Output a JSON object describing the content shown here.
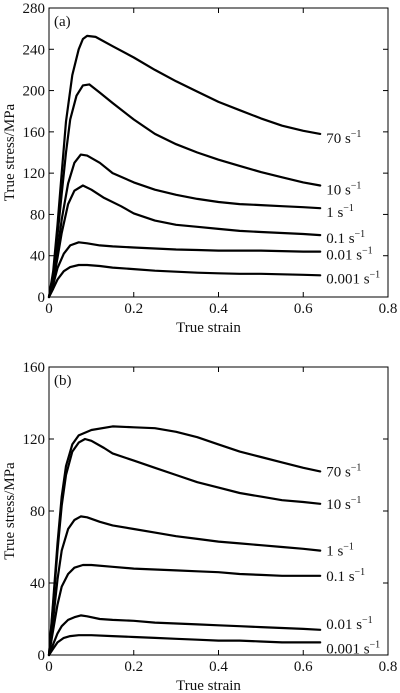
{
  "chart_data": [
    {
      "type": "line",
      "panel_label": "(a)",
      "xlabel": "True strain",
      "ylabel": "True stress/MPa",
      "xlim": [
        0,
        0.8
      ],
      "ylim": [
        0,
        280
      ],
      "xticks": [
        0,
        0.2,
        0.4,
        0.6,
        0.8
      ],
      "xtick_labels": [
        "0",
        "0.2",
        "0.4",
        "0.6",
        "0.8"
      ],
      "yticks": [
        0,
        40,
        80,
        120,
        160,
        200,
        240,
        280
      ],
      "ytick_labels": [
        "0",
        "40",
        "80",
        "120",
        "160",
        "200",
        "240",
        "280"
      ],
      "grid": false,
      "legend": "inline labels at right end of curves",
      "series": [
        {
          "name": "70 s",
          "sup": "−1",
          "points": [
            [
              0,
              0
            ],
            [
              0.01,
              25
            ],
            [
              0.02,
              70
            ],
            [
              0.03,
              120
            ],
            [
              0.04,
              170
            ],
            [
              0.055,
              215
            ],
            [
              0.07,
              240
            ],
            [
              0.08,
              250
            ],
            [
              0.09,
              253
            ],
            [
              0.11,
              252
            ],
            [
              0.15,
              243
            ],
            [
              0.2,
              232
            ],
            [
              0.25,
              220
            ],
            [
              0.3,
              209
            ],
            [
              0.35,
              199
            ],
            [
              0.4,
              189
            ],
            [
              0.45,
              181
            ],
            [
              0.5,
              173
            ],
            [
              0.55,
              166
            ],
            [
              0.6,
              161
            ],
            [
              0.64,
              158
            ]
          ]
        },
        {
          "name": "10 s",
          "sup": "−1",
          "points": [
            [
              0,
              0
            ],
            [
              0.01,
              22
            ],
            [
              0.02,
              60
            ],
            [
              0.03,
              100
            ],
            [
              0.04,
              140
            ],
            [
              0.05,
              172
            ],
            [
              0.065,
              195
            ],
            [
              0.08,
              205
            ],
            [
              0.095,
              206
            ],
            [
              0.12,
              198
            ],
            [
              0.15,
              188
            ],
            [
              0.2,
              172
            ],
            [
              0.25,
              158
            ],
            [
              0.3,
              148
            ],
            [
              0.35,
              140
            ],
            [
              0.4,
              133
            ],
            [
              0.45,
              127
            ],
            [
              0.5,
              121
            ],
            [
              0.55,
              116
            ],
            [
              0.6,
              111
            ],
            [
              0.64,
              108
            ]
          ]
        },
        {
          "name": "1 s",
          "sup": "−1",
          "points": [
            [
              0,
              0
            ],
            [
              0.01,
              18
            ],
            [
              0.02,
              45
            ],
            [
              0.03,
              75
            ],
            [
              0.045,
              110
            ],
            [
              0.06,
              130
            ],
            [
              0.075,
              138
            ],
            [
              0.09,
              137
            ],
            [
              0.12,
              130
            ],
            [
              0.15,
              120
            ],
            [
              0.2,
              111
            ],
            [
              0.25,
              104
            ],
            [
              0.3,
              99
            ],
            [
              0.35,
              95
            ],
            [
              0.4,
              92
            ],
            [
              0.45,
              90
            ],
            [
              0.5,
              89
            ],
            [
              0.55,
              88
            ],
            [
              0.6,
              87
            ],
            [
              0.64,
              86
            ]
          ]
        },
        {
          "name": "0.1 s",
          "sup": "−1",
          "points": [
            [
              0,
              0
            ],
            [
              0.01,
              15
            ],
            [
              0.02,
              38
            ],
            [
              0.03,
              62
            ],
            [
              0.045,
              90
            ],
            [
              0.06,
              103
            ],
            [
              0.08,
              108
            ],
            [
              0.1,
              104
            ],
            [
              0.13,
              96
            ],
            [
              0.17,
              88
            ],
            [
              0.2,
              81
            ],
            [
              0.25,
              74
            ],
            [
              0.3,
              70
            ],
            [
              0.35,
              68
            ],
            [
              0.4,
              66
            ],
            [
              0.45,
              64
            ],
            [
              0.5,
              63
            ],
            [
              0.55,
              62
            ],
            [
              0.6,
              61
            ],
            [
              0.64,
              60
            ]
          ]
        },
        {
          "name": "0.01 s",
          "sup": "−1",
          "points": [
            [
              0,
              0
            ],
            [
              0.01,
              12
            ],
            [
              0.02,
              28
            ],
            [
              0.035,
              42
            ],
            [
              0.05,
              50
            ],
            [
              0.07,
              53
            ],
            [
              0.09,
              52
            ],
            [
              0.12,
              50
            ],
            [
              0.15,
              49
            ],
            [
              0.2,
              48
            ],
            [
              0.25,
              47
            ],
            [
              0.3,
              46
            ],
            [
              0.35,
              45.5
            ],
            [
              0.4,
              45
            ],
            [
              0.45,
              45
            ],
            [
              0.5,
              45
            ],
            [
              0.55,
              44.5
            ],
            [
              0.6,
              44
            ],
            [
              0.64,
              44
            ]
          ]
        },
        {
          "name": "0.001 s",
          "sup": "−1",
          "points": [
            [
              0,
              0
            ],
            [
              0.01,
              8
            ],
            [
              0.02,
              17
            ],
            [
              0.035,
              25
            ],
            [
              0.05,
              29
            ],
            [
              0.07,
              31
            ],
            [
              0.09,
              31
            ],
            [
              0.12,
              30
            ],
            [
              0.15,
              28.5
            ],
            [
              0.2,
              27
            ],
            [
              0.25,
              25.5
            ],
            [
              0.3,
              24.5
            ],
            [
              0.35,
              23.5
            ],
            [
              0.4,
              23
            ],
            [
              0.45,
              22.5
            ],
            [
              0.5,
              22.5
            ],
            [
              0.55,
              22
            ],
            [
              0.6,
              21.5
            ],
            [
              0.64,
              21
            ]
          ]
        }
      ]
    },
    {
      "type": "line",
      "panel_label": "(b)",
      "xlabel": "True strain",
      "ylabel": "True stress/MPa",
      "xlim": [
        0,
        0.8
      ],
      "ylim": [
        0,
        160
      ],
      "xticks": [
        0,
        0.2,
        0.4,
        0.6,
        0.8
      ],
      "xtick_labels": [
        "0",
        "0.2",
        "0.4",
        "0.6",
        "0.8"
      ],
      "yticks": [
        0,
        40,
        80,
        120,
        160
      ],
      "ytick_labels": [
        "0",
        "40",
        "80",
        "120",
        "160"
      ],
      "grid": false,
      "legend": "inline labels at right end of curves",
      "series": [
        {
          "name": "70 s",
          "sup": "−1",
          "points": [
            [
              0,
              0
            ],
            [
              0.01,
              30
            ],
            [
              0.02,
              62
            ],
            [
              0.03,
              88
            ],
            [
              0.04,
              105
            ],
            [
              0.055,
              117
            ],
            [
              0.07,
              122
            ],
            [
              0.1,
              125
            ],
            [
              0.15,
              127
            ],
            [
              0.2,
              126.5
            ],
            [
              0.25,
              126
            ],
            [
              0.3,
              124
            ],
            [
              0.35,
              121
            ],
            [
              0.4,
              117
            ],
            [
              0.45,
              113
            ],
            [
              0.5,
              110
            ],
            [
              0.55,
              107
            ],
            [
              0.6,
              104
            ],
            [
              0.64,
              102
            ]
          ]
        },
        {
          "name": "10 s",
          "sup": "−1",
          "points": [
            [
              0,
              0
            ],
            [
              0.01,
              28
            ],
            [
              0.02,
              58
            ],
            [
              0.03,
              83
            ],
            [
              0.04,
              100
            ],
            [
              0.055,
              113
            ],
            [
              0.07,
              118
            ],
            [
              0.085,
              120
            ],
            [
              0.1,
              119
            ],
            [
              0.13,
              115
            ],
            [
              0.15,
              112
            ],
            [
              0.2,
              108
            ],
            [
              0.25,
              104
            ],
            [
              0.3,
              100
            ],
            [
              0.35,
              96
            ],
            [
              0.4,
              93
            ],
            [
              0.45,
              90
            ],
            [
              0.5,
              88
            ],
            [
              0.55,
              86
            ],
            [
              0.6,
              85
            ],
            [
              0.64,
              84
            ]
          ]
        },
        {
          "name": "1 s",
          "sup": "−1",
          "points": [
            [
              0,
              0
            ],
            [
              0.01,
              20
            ],
            [
              0.02,
              42
            ],
            [
              0.03,
              58
            ],
            [
              0.045,
              70
            ],
            [
              0.06,
              75
            ],
            [
              0.075,
              77
            ],
            [
              0.09,
              76.5
            ],
            [
              0.12,
              74
            ],
            [
              0.15,
              72
            ],
            [
              0.2,
              70
            ],
            [
              0.25,
              68
            ],
            [
              0.3,
              66
            ],
            [
              0.35,
              64.5
            ],
            [
              0.4,
              63
            ],
            [
              0.45,
              62
            ],
            [
              0.5,
              61
            ],
            [
              0.55,
              60
            ],
            [
              0.6,
              59
            ],
            [
              0.64,
              58
            ]
          ]
        },
        {
          "name": "0.1 s",
          "sup": "−1",
          "points": [
            [
              0,
              0
            ],
            [
              0.01,
              14
            ],
            [
              0.02,
              28
            ],
            [
              0.03,
              38
            ],
            [
              0.045,
              45
            ],
            [
              0.06,
              48.5
            ],
            [
              0.08,
              50
            ],
            [
              0.1,
              50
            ],
            [
              0.15,
              49
            ],
            [
              0.2,
              48
            ],
            [
              0.25,
              47.5
            ],
            [
              0.3,
              47
            ],
            [
              0.35,
              46.5
            ],
            [
              0.4,
              46
            ],
            [
              0.45,
              45
            ],
            [
              0.5,
              44.5
            ],
            [
              0.55,
              44
            ],
            [
              0.6,
              44
            ],
            [
              0.64,
              44
            ]
          ]
        },
        {
          "name": "0.01 s",
          "sup": "−1",
          "points": [
            [
              0,
              0
            ],
            [
              0.01,
              6
            ],
            [
              0.02,
              12
            ],
            [
              0.03,
              16
            ],
            [
              0.045,
              19.5
            ],
            [
              0.06,
              21
            ],
            [
              0.075,
              22
            ],
            [
              0.09,
              21.5
            ],
            [
              0.12,
              20
            ],
            [
              0.15,
              19.5
            ],
            [
              0.2,
              19
            ],
            [
              0.25,
              18
            ],
            [
              0.3,
              17.5
            ],
            [
              0.35,
              17
            ],
            [
              0.4,
              16.5
            ],
            [
              0.45,
              16
            ],
            [
              0.5,
              15.5
            ],
            [
              0.55,
              15
            ],
            [
              0.6,
              14.5
            ],
            [
              0.64,
              14
            ]
          ]
        },
        {
          "name": "0.001 s",
          "sup": "−1",
          "points": [
            [
              0,
              0
            ],
            [
              0.01,
              3.5
            ],
            [
              0.02,
              7
            ],
            [
              0.035,
              9.5
            ],
            [
              0.05,
              10.5
            ],
            [
              0.07,
              11
            ],
            [
              0.1,
              11
            ],
            [
              0.15,
              10.5
            ],
            [
              0.2,
              10
            ],
            [
              0.25,
              9.5
            ],
            [
              0.3,
              9
            ],
            [
              0.35,
              8.5
            ],
            [
              0.4,
              8
            ],
            [
              0.45,
              8
            ],
            [
              0.5,
              7.5
            ],
            [
              0.55,
              7
            ],
            [
              0.6,
              7
            ],
            [
              0.64,
              7
            ]
          ]
        }
      ]
    }
  ]
}
